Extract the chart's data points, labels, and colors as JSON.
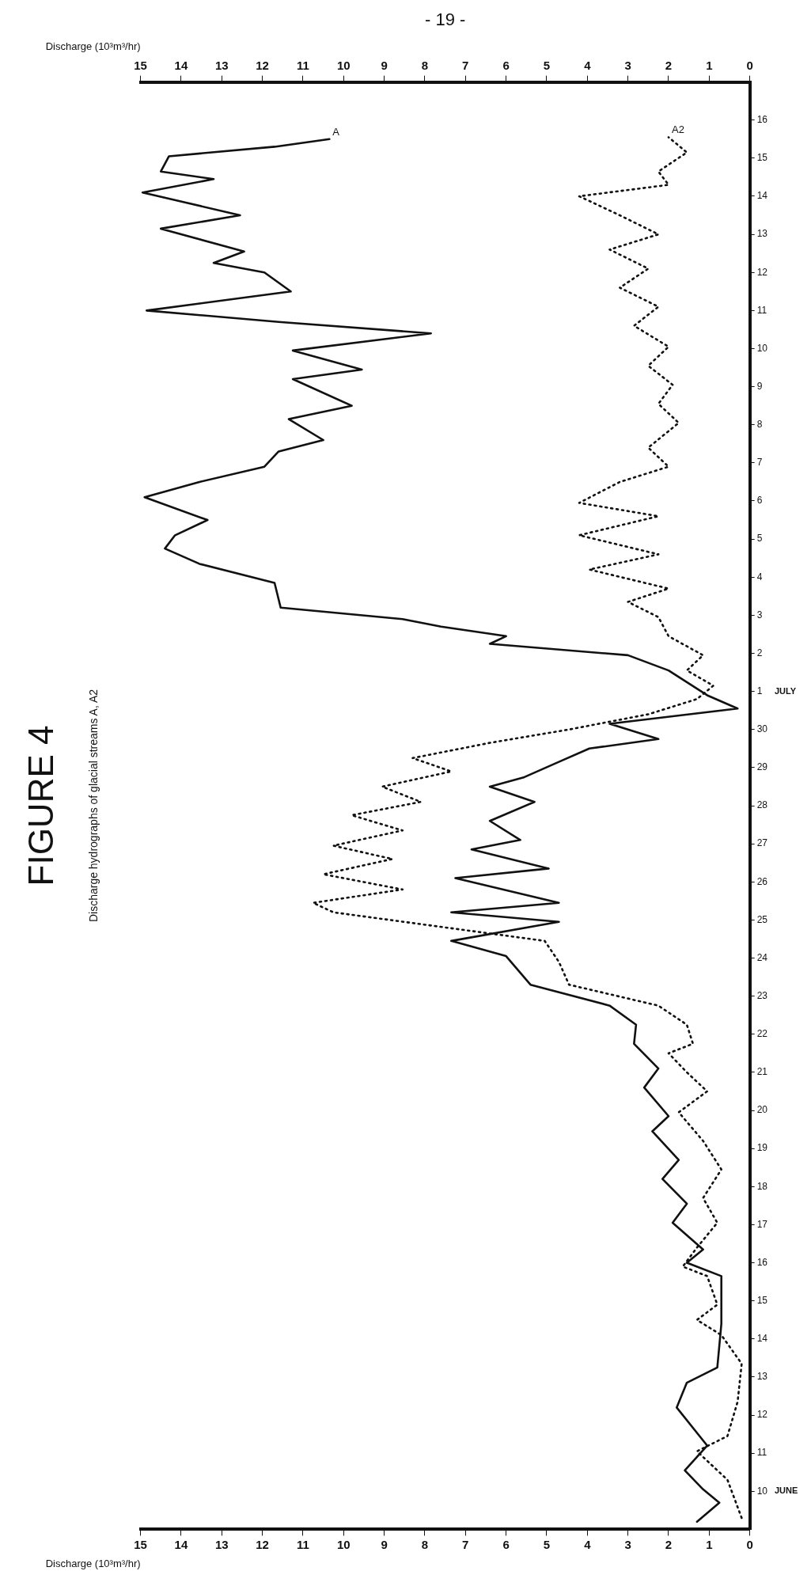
{
  "chart_data": {
    "type": "line",
    "title": "FIGURE 4",
    "subtitle": "Discharge hydrographs of glacial streams A, A2",
    "xlabel": "Discharge (10³m³/hr)",
    "x2label": "Discharge (10³m³/hr)",
    "annotations": [
      "JUNE",
      "JULY",
      "- 19 -"
    ],
    "xlim": [
      15,
      0
    ],
    "xticks": [
      15,
      14,
      13,
      12,
      11,
      10,
      9,
      8,
      7,
      6,
      5,
      4,
      3,
      2,
      1,
      0
    ],
    "x2lim": [
      15,
      0
    ],
    "x2ticks": [
      15,
      14,
      13,
      12,
      11,
      10,
      9,
      8,
      7,
      6,
      5,
      4,
      3,
      2,
      1,
      0
    ],
    "ylim": [
      9,
      47
    ],
    "yticks": [
      10,
      11,
      12,
      13,
      14,
      15,
      16,
      17,
      18,
      19,
      20,
      21,
      22,
      23,
      24,
      25,
      26,
      27,
      28,
      29,
      30
    ],
    "y2lim": [
      -21,
      17
    ],
    "y2ticks": [
      1,
      2,
      3,
      4,
      5,
      6,
      7,
      8,
      9,
      10,
      11,
      12,
      13,
      14,
      15,
      16
    ],
    "grid": false,
    "legend": false,
    "marker": "none",
    "series": [
      {
        "name": "A",
        "color": "#111111",
        "line_style": "solid",
        "values": [
          9.2,
          9.7,
          10.05,
          10.55,
          11.2,
          12.2,
          12.85,
          13.25,
          14.4,
          15.65,
          16.0,
          16.35,
          17.05,
          17.55,
          18.2,
          18.7,
          19.45,
          19.85,
          20.6,
          21.1,
          21.75,
          22.25,
          22.75,
          23.3,
          24.05,
          24.45,
          24.95,
          25.2,
          25.45,
          26.1,
          26.35,
          26.85,
          27.1,
          27.6,
          28.1,
          28.5,
          28.75,
          29.15,
          29.5,
          29.75,
          30.15,
          30.55,
          30.9,
          31.55,
          31.95,
          32.25,
          32.45,
          32.7,
          32.9,
          33.2,
          33.85,
          34.35,
          34.75,
          35.1,
          35.5,
          36.1,
          36.5,
          36.9,
          37.3,
          37.6,
          38.15,
          38.5,
          39.2,
          39.45,
          39.95,
          40.4,
          40.7,
          41.0,
          41.5,
          42.0,
          42.25,
          42.55,
          43.15,
          43.5,
          44.1,
          44.45,
          44.65,
          45.05,
          45.3,
          45.5
        ],
        "x": [
          1.3,
          0.75,
          1.15,
          1.6,
          1.05,
          1.8,
          1.55,
          0.8,
          0.7,
          0.7,
          1.55,
          1.15,
          1.9,
          1.55,
          2.15,
          1.75,
          2.4,
          2.0,
          2.6,
          2.25,
          2.85,
          2.8,
          3.45,
          5.4,
          6.0,
          7.35,
          4.7,
          7.35,
          4.7,
          7.25,
          4.95,
          6.85,
          5.65,
          6.4,
          5.3,
          6.4,
          5.55,
          4.7,
          3.95,
          2.25,
          3.45,
          0.3,
          1.05,
          2.0,
          3.0,
          6.4,
          6.0,
          7.6,
          8.55,
          11.55,
          11.7,
          13.55,
          14.4,
          14.15,
          13.35,
          14.9,
          13.55,
          11.95,
          11.6,
          10.5,
          11.35,
          9.8,
          11.25,
          9.55,
          11.25,
          7.85,
          11.6,
          14.85,
          11.3,
          11.95,
          13.2,
          12.45,
          14.5,
          12.55,
          14.95,
          13.2,
          14.5,
          14.3,
          11.7,
          10.35
        ]
      },
      {
        "name": "A2",
        "color": "#111111",
        "line_style": "dotted",
        "values": [
          9.3,
          10.3,
          11.05,
          11.45,
          12.35,
          13.35,
          14.1,
          14.5,
          14.9,
          15.65,
          15.9,
          16.4,
          17.05,
          17.7,
          18.45,
          19.2,
          19.95,
          20.5,
          21.0,
          21.5,
          21.75,
          22.25,
          22.75,
          23.3,
          23.9,
          24.45,
          25.2,
          25.45,
          25.8,
          26.2,
          26.6,
          26.95,
          27.35,
          27.75,
          28.1,
          28.5,
          28.9,
          29.25,
          29.65,
          30.0,
          30.4,
          30.8,
          31.15,
          31.55,
          31.95,
          32.45,
          32.95,
          33.35,
          33.7,
          34.2,
          34.6,
          35.1,
          35.6,
          35.95,
          36.5,
          36.9,
          37.4,
          38.05,
          38.55,
          39.05,
          39.55,
          40.05,
          40.6,
          41.1,
          41.6,
          42.1,
          42.6,
          43.0,
          43.5,
          44.0,
          44.3,
          44.65,
          45.15,
          45.55
        ],
        "x": [
          0.2,
          0.55,
          1.3,
          0.55,
          0.3,
          0.2,
          0.7,
          1.3,
          0.8,
          1.05,
          1.65,
          1.3,
          0.8,
          1.15,
          0.7,
          1.15,
          1.75,
          1.05,
          1.55,
          2.0,
          1.4,
          1.55,
          2.25,
          4.45,
          4.7,
          5.05,
          10.25,
          10.75,
          8.55,
          10.5,
          8.8,
          10.25,
          8.55,
          9.8,
          8.1,
          9.05,
          7.35,
          8.3,
          6.4,
          4.45,
          2.5,
          1.3,
          0.9,
          1.55,
          1.15,
          2.0,
          2.25,
          3.0,
          2.0,
          3.95,
          2.25,
          4.2,
          2.25,
          4.2,
          3.2,
          2.0,
          2.5,
          1.75,
          2.25,
          1.9,
          2.5,
          2.0,
          2.85,
          2.25,
          3.2,
          2.5,
          3.45,
          2.25,
          3.2,
          4.2,
          2.0,
          2.25,
          1.55,
          2.0
        ]
      }
    ]
  }
}
